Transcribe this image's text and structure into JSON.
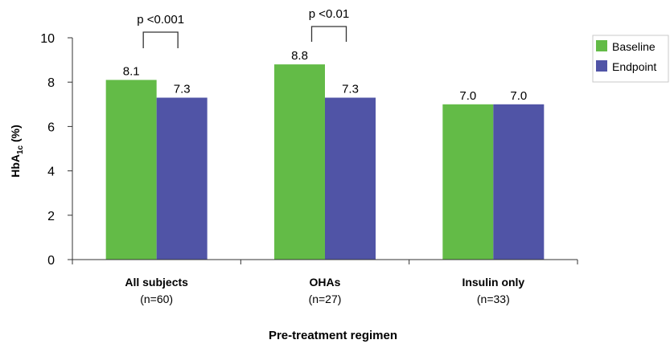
{
  "chart_data": {
    "type": "bar",
    "categories": [
      {
        "name": "All subjects",
        "n": "(n=60)"
      },
      {
        "name": "OHAs",
        "n": "(n=27)"
      },
      {
        "name": "Insulin only",
        "n": "(n=33)"
      }
    ],
    "series": [
      {
        "name": "Baseline",
        "color": "#63bb47",
        "values": [
          8.1,
          8.8,
          7.0
        ],
        "labels": [
          "8.1",
          "8.8",
          "7.0"
        ]
      },
      {
        "name": "Endpoint",
        "color": "#5054a6",
        "values": [
          7.3,
          7.3,
          7.0
        ],
        "labels": [
          "7.3",
          "7.3",
          "7.0"
        ]
      }
    ],
    "xlabel": "Pre-treatment regimen",
    "ylabel": {
      "main": "HbA",
      "sub": "1c",
      "suffix": " (%)"
    },
    "ylim": [
      0,
      10
    ],
    "yticks": [
      "0",
      "2",
      "4",
      "6",
      "8",
      "10"
    ],
    "annotations": [
      {
        "category_index": 0,
        "text": "p <0.001"
      },
      {
        "category_index": 1,
        "text": "p <0.01"
      }
    ],
    "legend_position": "top-right"
  }
}
